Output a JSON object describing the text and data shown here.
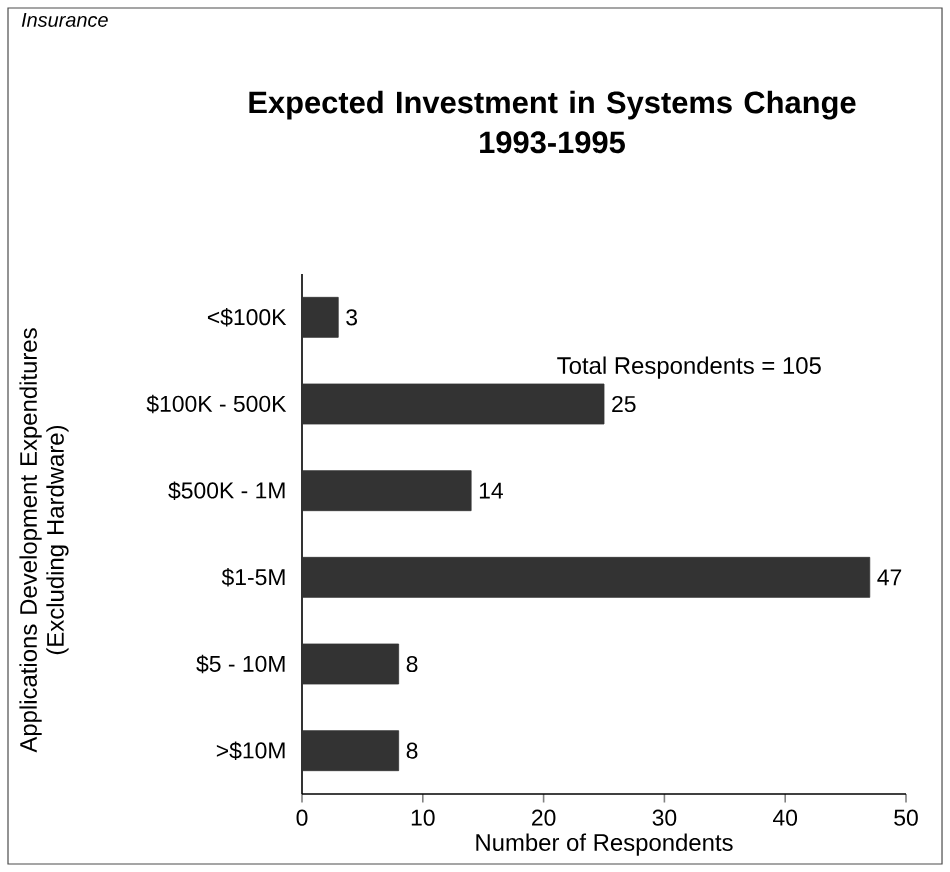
{
  "chart_data": {
    "type": "bar",
    "orientation": "horizontal",
    "title": "Expected Investment in Systems Change\n1993-1995",
    "xlabel": "Number of Respondents",
    "ylabel": "Applications Development Expenditures\n(Excluding Hardware)",
    "categories": [
      "<$100K",
      "$100K - 500K",
      "$500K - 1M",
      "$1-5M",
      "$5 - 10M",
      ">$10M"
    ],
    "values": [
      3,
      25,
      14,
      47,
      8,
      8
    ],
    "color": "#333333",
    "xlim": [
      0,
      50
    ],
    "xticks": [
      0,
      10,
      20,
      30,
      40,
      50
    ],
    "data_labels": true,
    "annotations": [
      "Insurance",
      "Total Respondents = 105"
    ]
  }
}
